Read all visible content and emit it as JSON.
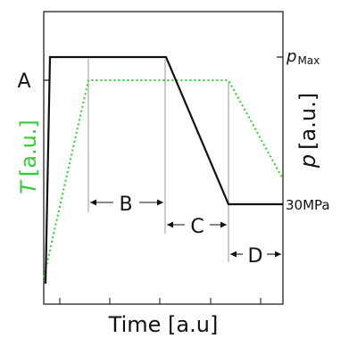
{
  "labels": {
    "phase_a": "A",
    "phase_b": "B",
    "phase_c": "C",
    "phase_d": "D",
    "x_axis": "Time [a.u]",
    "y_left_symbol": "T",
    "y_left_unit": "[a.u.]",
    "y_right_symbol": "p",
    "y_right_unit": "[a.u.]",
    "p_max_symbol": "p",
    "p_max_subscript": "Max",
    "pressure_level": "30MPa"
  },
  "colors": {
    "pressure_line": "#111111",
    "temperature_line": "#33cc33",
    "frame": "#111111",
    "phase_marker": "#999999"
  },
  "line_styles": {
    "pressure": "solid",
    "temperature": "dotted"
  }
}
